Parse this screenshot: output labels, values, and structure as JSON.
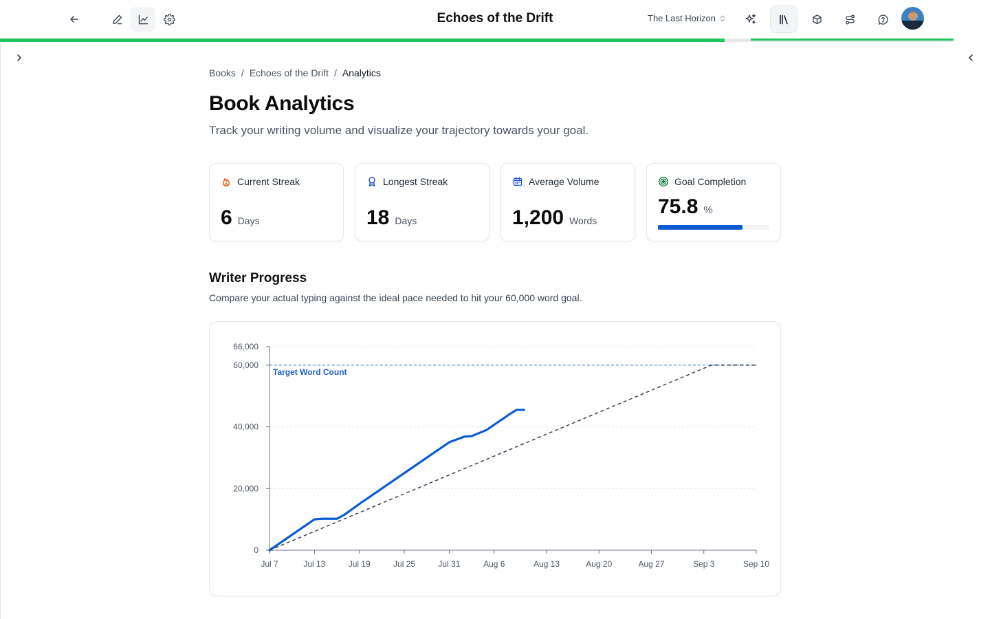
{
  "header": {
    "app_title": "Echoes of the Drift",
    "project_name": "The Last Horizon",
    "icons": [
      "back-arrow-icon",
      "pencil-icon",
      "chart-line-icon",
      "gear-icon",
      "sparkles-icon",
      "library-icon",
      "box-icon",
      "workflow-icon",
      "help-icon"
    ],
    "progress_fraction": 0.76
  },
  "breadcrumb": {
    "items": [
      "Books",
      "Echoes of the Drift",
      "Analytics"
    ],
    "separator": "/"
  },
  "page": {
    "title": "Book Analytics",
    "subtitle": "Track your writing volume and visualize your trajectory towards your goal."
  },
  "stats": [
    {
      "label": "Current Streak",
      "value": "6",
      "unit": "Days",
      "icon": "flame-icon",
      "color": "#ea580c"
    },
    {
      "label": "Longest Streak",
      "value": "18",
      "unit": "Days",
      "icon": "award-icon",
      "color": "#1d4ed8"
    },
    {
      "label": "Average Volume",
      "value": "1,200",
      "unit": "Words",
      "icon": "calendar-icon",
      "color": "#1d4ed8"
    },
    {
      "label": "Goal Completion",
      "value": "75.8",
      "unit": "%",
      "icon": "target-icon",
      "color": "#15803d",
      "progress": 0.758
    }
  ],
  "progress_section": {
    "title": "Writer Progress",
    "subtitle": "Compare your actual typing against the ideal pace needed to hit your 60,000 word goal."
  },
  "chart_data": {
    "type": "line",
    "x_start": "Jul 7",
    "x_tick_labels": [
      "Jul 7",
      "Jul 13",
      "Jul 19",
      "Jul 25",
      "Jul 31",
      "Aug 6",
      "Aug 13",
      "Aug 20",
      "Aug 27",
      "Sep 3",
      "Sep 10"
    ],
    "x_tick_days": [
      0,
      6,
      12,
      18,
      24,
      30,
      37,
      44,
      51,
      58,
      65
    ],
    "y_ticks": [
      0,
      20000,
      40000,
      60000,
      66000
    ],
    "y_tick_labels": [
      "0",
      "20,000",
      "40,000",
      "60,000",
      "66,000"
    ],
    "ylim": [
      0,
      66000
    ],
    "xlim_days": [
      0,
      65
    ],
    "grid": true,
    "target": {
      "value": 60000,
      "label": "Target Word Count"
    },
    "series": [
      {
        "style": "solid",
        "color": "#0b5bd3",
        "days": [
          0,
          6,
          7,
          9,
          10,
          12,
          18,
          24,
          26,
          27,
          29,
          32,
          33,
          34
        ],
        "values": [
          0,
          10000,
          10200,
          10200,
          11500,
          15000,
          25000,
          35000,
          36800,
          37000,
          39000,
          44000,
          45500,
          45500
        ]
      },
      {
        "style": "dashed",
        "color": "#374151",
        "days": [
          0,
          59,
          65
        ],
        "values": [
          0,
          60000,
          60000
        ]
      }
    ]
  }
}
